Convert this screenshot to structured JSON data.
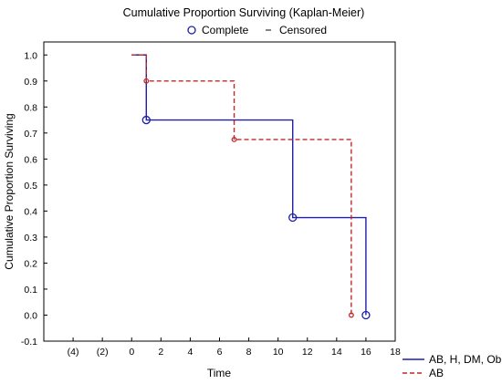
{
  "chart_data": {
    "type": "line",
    "chart_kind": "kaplan-meier step survival",
    "title": "Cumulative Proportion Surviving (Kaplan-Meier)",
    "xlabel": "Time",
    "ylabel": "Cumulative Proportion Surviving",
    "xlim": [
      -6,
      18
    ],
    "ylim": [
      -0.1,
      1.05
    ],
    "x_ticks": [
      {
        "value": -4,
        "label": "(4)"
      },
      {
        "value": -2,
        "label": "(2)"
      },
      {
        "value": 0,
        "label": "0"
      },
      {
        "value": 2,
        "label": "2"
      },
      {
        "value": 4,
        "label": "4"
      },
      {
        "value": 6,
        "label": "6"
      },
      {
        "value": 8,
        "label": "8"
      },
      {
        "value": 10,
        "label": "10"
      },
      {
        "value": 12,
        "label": "12"
      },
      {
        "value": 14,
        "label": "14"
      },
      {
        "value": 16,
        "label": "16"
      },
      {
        "value": 18,
        "label": "18"
      }
    ],
    "y_ticks": [
      {
        "value": 1.0,
        "label": "1.0"
      },
      {
        "value": 0.9,
        "label": "0.9"
      },
      {
        "value": 0.8,
        "label": "0.8"
      },
      {
        "value": 0.7,
        "label": "0.7"
      },
      {
        "value": 0.6,
        "label": "0.6"
      },
      {
        "value": 0.5,
        "label": "0.5"
      },
      {
        "value": 0.4,
        "label": "0.4"
      },
      {
        "value": 0.3,
        "label": "0.3"
      },
      {
        "value": 0.2,
        "label": "0.2"
      },
      {
        "value": 0.1,
        "label": "0.1"
      },
      {
        "value": 0.0,
        "label": "0.0"
      },
      {
        "value": -0.1,
        "label": "-0.1"
      }
    ],
    "grid": false,
    "marker_legend": {
      "position": "top",
      "items": [
        {
          "symbol": "circle",
          "label": "Complete"
        },
        {
          "symbol": "dash",
          "label": "Censored"
        }
      ]
    },
    "series_legend_position": "bottom-right",
    "series": [
      {
        "name": "AB, H, DM, Ob",
        "color": "#1f1fa8",
        "dash": "solid",
        "marker": "circle",
        "steps": [
          {
            "x": 0,
            "y": 1.0
          },
          {
            "x": 1,
            "y": 0.75
          },
          {
            "x": 11,
            "y": 0.375
          },
          {
            "x": 16,
            "y": 0.0
          }
        ],
        "events": [
          {
            "x": 1,
            "y": 0.75
          },
          {
            "x": 11,
            "y": 0.375
          },
          {
            "x": 16,
            "y": 0.0
          }
        ]
      },
      {
        "name": "AB",
        "color": "#c0282d",
        "dash": "dashed",
        "marker": "small-circle",
        "steps": [
          {
            "x": 0,
            "y": 1.0
          },
          {
            "x": 1,
            "y": 0.9
          },
          {
            "x": 7,
            "y": 0.675
          },
          {
            "x": 15,
            "y": 0.0
          }
        ],
        "events": [
          {
            "x": 1,
            "y": 0.9
          },
          {
            "x": 7,
            "y": 0.675
          },
          {
            "x": 15,
            "y": 0.0
          }
        ]
      }
    ]
  }
}
